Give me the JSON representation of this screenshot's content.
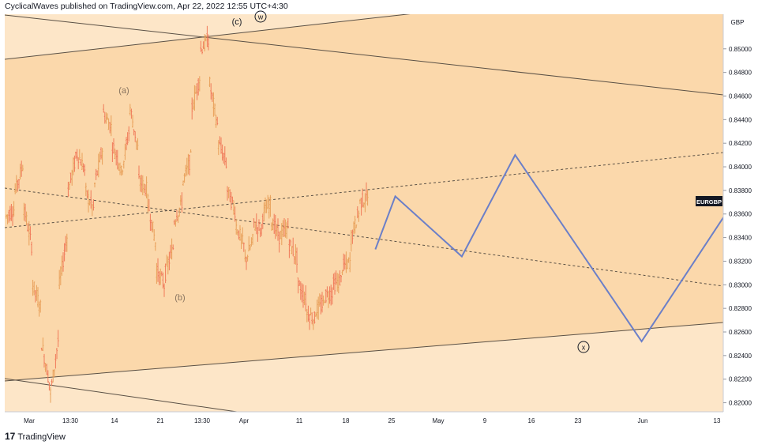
{
  "header": {
    "publisher_line": "CyclicalWaves published on TradingView.com, Apr 22, 2022 12:55 UTC+4:30"
  },
  "footer": {
    "brand_glyph": "17",
    "brand": "TradingView"
  },
  "colors": {
    "channel_fill": "#fbd8ab",
    "outer_fill": "#fde6c8",
    "up_bar": "#e8a05a",
    "down_bar": "#f07a5a",
    "projection": "#6b7fc8",
    "trendline": "#555555",
    "symbol_tag_bg": "#131722"
  },
  "chart_data": {
    "type": "ohlc",
    "symbol": "EURGBP",
    "currency_label": "GBP",
    "x_ticks": [
      "Mar",
      "13:30",
      "14",
      "21",
      "13:30",
      "Apr",
      "11",
      "18",
      "25",
      "May",
      "9",
      "16",
      "23",
      "Jun",
      "13"
    ],
    "y_ticks": [
      "0.85000",
      "0.84800",
      "0.84600",
      "0.84400",
      "0.84200",
      "0.84000",
      "0.83800",
      "0.83600",
      "0.83400",
      "0.83200",
      "0.83000",
      "0.82800",
      "0.82600",
      "0.82400",
      "0.82200",
      "0.82000"
    ],
    "y_range": [
      0.8193,
      0.8528
    ],
    "wave_labels": [
      "(a)",
      "(b)",
      "(c)",
      "w",
      "x"
    ],
    "price_path": [
      [
        0.8358,
        0.8365
      ],
      [
        0.838,
        0.8405
      ],
      [
        0.8365,
        0.8328
      ],
      [
        0.83,
        0.8278
      ],
      [
        0.825,
        0.8212
      ],
      [
        0.8208,
        0.826
      ],
      [
        0.83,
        0.8348
      ],
      [
        0.838,
        0.8412
      ],
      [
        0.8412,
        0.8395
      ],
      [
        0.8378,
        0.8362
      ],
      [
        0.8385,
        0.842
      ],
      [
        0.8445,
        0.8432
      ],
      [
        0.8418,
        0.84
      ],
      [
        0.8395,
        0.8435
      ],
      [
        0.845,
        0.841
      ],
      [
        0.8388,
        0.838
      ],
      [
        0.837,
        0.833
      ],
      [
        0.8312,
        0.8298
      ],
      [
        0.831,
        0.8335
      ],
      [
        0.8355,
        0.8372
      ],
      [
        0.8388,
        0.841
      ],
      [
        0.845,
        0.848
      ],
      [
        0.85,
        0.851
      ],
      [
        0.847,
        0.843
      ],
      [
        0.842,
        0.84
      ],
      [
        0.838,
        0.836
      ],
      [
        0.835,
        0.833
      ],
      [
        0.832,
        0.834
      ],
      [
        0.8352,
        0.8345
      ],
      [
        0.836,
        0.837
      ],
      [
        0.8355,
        0.8338
      ],
      [
        0.8342,
        0.835
      ],
      [
        0.8335,
        0.832
      ],
      [
        0.83,
        0.8285
      ],
      [
        0.8276,
        0.827
      ],
      [
        0.8278,
        0.8285
      ],
      [
        0.829,
        0.8295
      ],
      [
        0.83,
        0.8305
      ],
      [
        0.8315,
        0.832
      ],
      [
        0.834,
        0.8365
      ],
      [
        0.837,
        0.8375
      ]
    ],
    "projection": [
      [
        "2022-04-22",
        0.833
      ],
      [
        "2022-04-25",
        0.8375
      ],
      [
        "2022-05-05",
        0.8324
      ],
      [
        "2022-05-13",
        0.841
      ],
      [
        "2022-06-01",
        0.8252
      ],
      [
        "2022-06-30",
        0.85
      ]
    ]
  }
}
